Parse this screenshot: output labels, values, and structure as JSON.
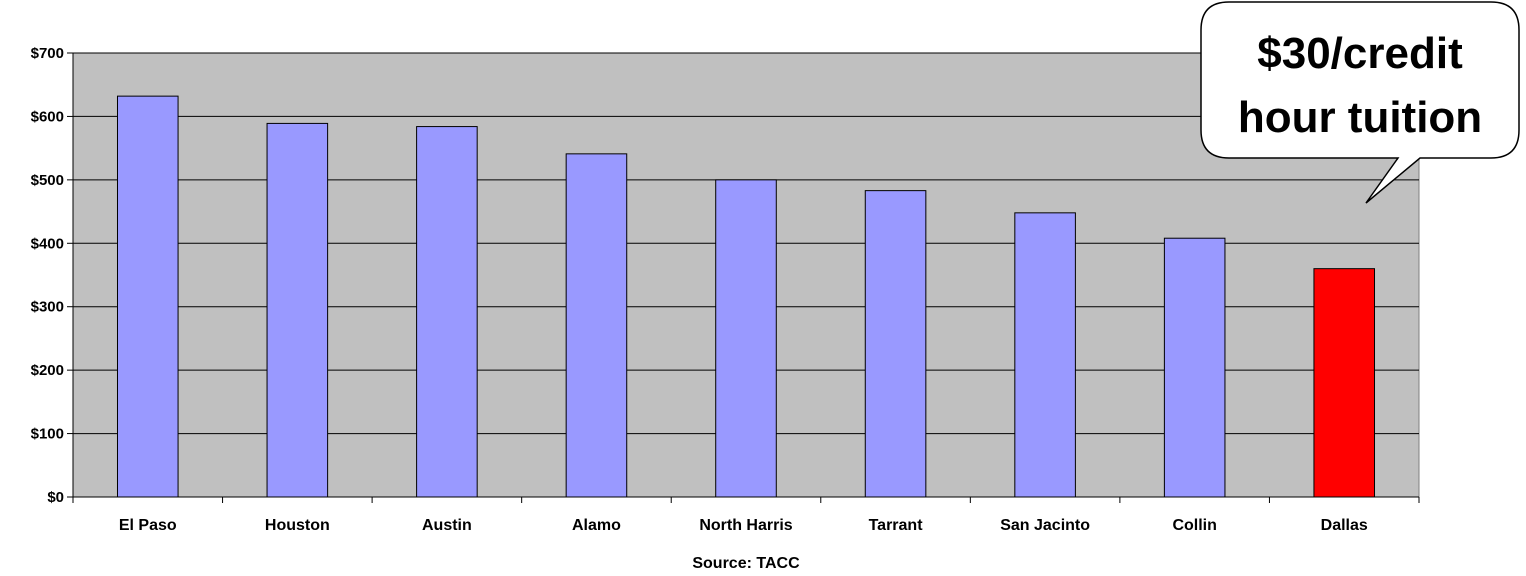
{
  "chart_data": {
    "type": "bar",
    "categories": [
      "El Paso",
      "Houston",
      "Austin",
      "Alamo",
      "North Harris",
      "Tarrant",
      "San Jacinto",
      "Collin",
      "Dallas"
    ],
    "values": [
      632,
      589,
      584,
      541,
      500,
      483,
      448,
      408,
      360
    ],
    "highlight_index": 8,
    "ylim": [
      0,
      700
    ],
    "ytick_step": 100,
    "ytick_prefix": "$",
    "grid": true,
    "colors": {
      "plot_bg": "#c0c0c0",
      "bar": "#9999ff",
      "highlight_bar": "#ff0000",
      "bar_stroke": "#000000"
    },
    "xlabel": "Source: TACC",
    "annotation": {
      "lines": [
        "$30/credit",
        "hour tuition"
      ]
    }
  }
}
